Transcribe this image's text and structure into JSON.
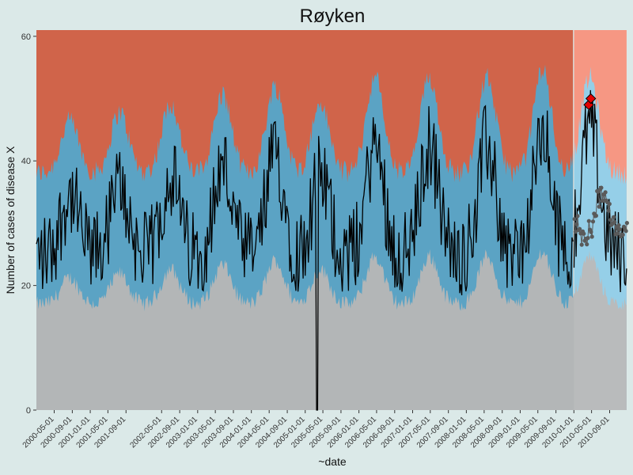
{
  "chart_data": {
    "type": "area",
    "title": "Røyken",
    "xlabel": "~date",
    "ylabel": "Number of cases of disease X",
    "x_range": [
      "2000-01-01",
      "2010-12-31"
    ],
    "ylim": [
      0,
      61
    ],
    "yticks": [
      0,
      20,
      40,
      60
    ],
    "xticks": [
      "2000-05-01",
      "2000-09-01",
      "2001-01-01",
      "2001-05-01",
      "2001-09-01",
      "2002-05-01",
      "2002-09-01",
      "2003-01-01",
      "2003-05-01",
      "2003-09-01",
      "2004-01-01",
      "2004-05-01",
      "2004-09-01",
      "2005-01-01",
      "2005-05-01",
      "2005-09-01",
      "2006-01-01",
      "2006-05-01",
      "2006-09-01",
      "2007-01-01",
      "2007-05-01",
      "2007-09-01",
      "2008-01-01",
      "2008-05-01",
      "2008-09-01",
      "2009-01-01",
      "2009-05-01",
      "2009-09-01",
      "2010-01-01",
      "2010-05-01",
      "2010-09-01"
    ],
    "historical_end": "2010-01-01",
    "colors": {
      "low_band": "#b3b6b7",
      "normal_band_hist": "#5ba3c4",
      "normal_band_fc": "#8dcbe7",
      "high_band_hist": "#d0644a",
      "high_band_fc": "#f68f79",
      "line": "#000000",
      "forecast_points": "#5a5a5a",
      "alerts": "#e30000"
    },
    "seasonal_peaks": [
      {
        "date": "2000-08-15",
        "value": 48
      },
      {
        "date": "2001-07-20",
        "value": 50
      },
      {
        "date": "2002-07-01",
        "value": 52
      },
      {
        "date": "2003-06-20",
        "value": 54
      },
      {
        "date": "2004-06-10",
        "value": 56
      },
      {
        "date": "2005-04-15",
        "value": 52
      },
      {
        "date": "2006-04-20",
        "value": 58
      },
      {
        "date": "2007-04-25",
        "value": 58
      },
      {
        "date": "2008-05-20",
        "value": 58
      },
      {
        "date": "2009-06-01",
        "value": 60
      },
      {
        "date": "2010-04-20",
        "value": 58
      }
    ],
    "notable_points": [
      {
        "date": "2005-03-20",
        "value": 0,
        "note": "drop to zero"
      },
      {
        "date": "2004-05-05",
        "value": 53
      }
    ],
    "alert_points": [
      {
        "date": "2010-04-12",
        "value": 49
      },
      {
        "date": "2010-04-26",
        "value": 50
      }
    ],
    "forecast_levels": [
      30,
      28,
      27,
      29,
      31,
      34,
      35,
      33,
      31,
      29,
      28,
      30
    ]
  }
}
